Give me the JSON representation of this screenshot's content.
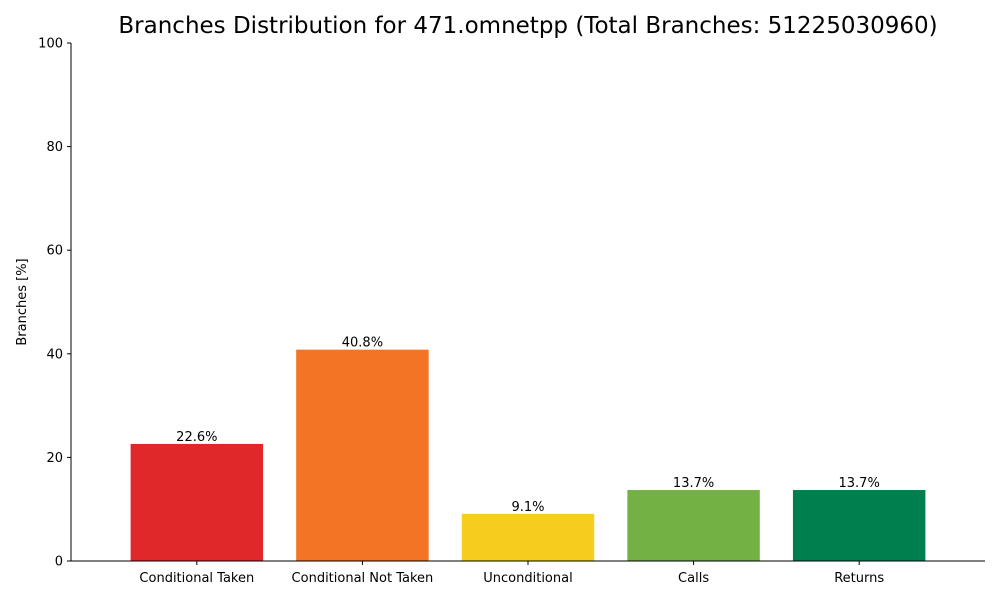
{
  "chart_data": {
    "type": "bar",
    "title": "Branches Distribution for 471.omnetpp (Total Branches: 51225030960)",
    "xlabel": "",
    "ylabel": "Branches [%]",
    "ylim": [
      0,
      100
    ],
    "yticks": [
      0,
      20,
      40,
      60,
      80,
      100
    ],
    "grid": false,
    "legend": "none",
    "categories": [
      "Conditional Taken",
      "Conditional Not Taken",
      "Unconditional",
      "Calls",
      "Returns"
    ],
    "values": [
      22.6,
      40.8,
      9.1,
      13.7,
      13.7
    ],
    "data_labels": [
      "22.6%",
      "40.8%",
      "9.1%",
      "13.7%",
      "13.7%"
    ],
    "colors": [
      "#e0272a",
      "#f27424",
      "#f7cd1d",
      "#74b145",
      "#007f4e"
    ]
  }
}
